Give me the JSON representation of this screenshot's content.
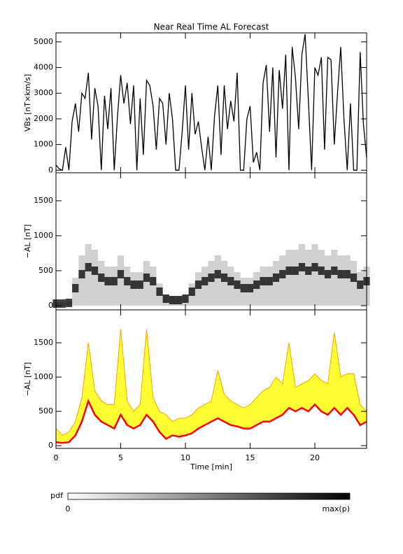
{
  "chart_data": [
    {
      "type": "line",
      "title": "Near Real Time AL Forecast",
      "y_label": "VBs [nT×km/s]",
      "color": "#000000",
      "x": [
        0,
        0.25,
        0.5,
        0.75,
        1,
        1.25,
        1.5,
        1.75,
        2,
        2.25,
        2.5,
        2.75,
        3,
        3.25,
        3.5,
        3.75,
        4,
        4.25,
        4.5,
        4.75,
        5,
        5.25,
        5.5,
        5.75,
        6,
        6.25,
        6.5,
        6.75,
        7,
        7.25,
        7.5,
        7.75,
        8,
        8.25,
        8.5,
        8.75,
        9,
        9.25,
        9.5,
        9.75,
        10,
        10.25,
        10.5,
        10.75,
        11,
        11.25,
        11.5,
        11.75,
        12,
        12.25,
        12.5,
        12.75,
        13,
        13.25,
        13.5,
        13.75,
        14,
        14.25,
        14.5,
        14.75,
        15,
        15.25,
        15.5,
        15.75,
        16,
        16.25,
        16.5,
        16.75,
        17,
        17.25,
        17.5,
        17.75,
        18,
        18.25,
        18.5,
        18.75,
        19,
        19.25,
        19.5,
        19.75,
        20,
        20.25,
        20.5,
        20.75,
        21,
        21.25,
        21.5,
        21.75,
        22,
        22.25,
        22.5,
        22.75,
        23,
        23.25,
        23.5,
        23.75,
        24
      ],
      "values": [
        200,
        50,
        0,
        900,
        0,
        1900,
        2600,
        1500,
        3000,
        2800,
        3800,
        1200,
        3200,
        2500,
        0,
        2900,
        1600,
        3200,
        0,
        2100,
        3700,
        2600,
        3400,
        1800,
        3300,
        0,
        2800,
        600,
        3500,
        3300,
        2500,
        800,
        2800,
        2600,
        1000,
        3000,
        2000,
        0,
        0,
        1500,
        3300,
        800,
        3000,
        1400,
        1900,
        900,
        0,
        1300,
        0,
        2100,
        3300,
        600,
        3300,
        1600,
        2700,
        1900,
        3800,
        0,
        0,
        2000,
        2500,
        300,
        700,
        0,
        3400,
        4100,
        1500,
        4000,
        500,
        3900,
        2400,
        4500,
        0,
        4800,
        3600,
        1600,
        4500,
        5300,
        2700,
        0,
        4000,
        3700,
        4400,
        800,
        4400,
        4300,
        1000,
        3000,
        4800,
        2000,
        0,
        2600,
        0,
        0,
        4600,
        1800,
        500
      ],
      "xlim": [
        0,
        24
      ],
      "xticks": [
        0,
        5,
        10,
        15,
        20
      ],
      "ylim": [
        -100,
        5350
      ],
      "yticks": [
        0,
        1000,
        2000,
        3000,
        4000,
        5000
      ]
    },
    {
      "type": "heatmap",
      "y_label": "−AL [nT]",
      "color": "#000000",
      "x": [
        0,
        0.5,
        1,
        1.5,
        2,
        2.5,
        3,
        3.5,
        4,
        4.5,
        5,
        5.5,
        6,
        6.5,
        7,
        7.5,
        8,
        8.5,
        9,
        9.5,
        10,
        10.5,
        11,
        11.5,
        12,
        12.5,
        13,
        13.5,
        14,
        14.5,
        15,
        15.5,
        16,
        16.5,
        17,
        17.5,
        18,
        18.5,
        19,
        19.5,
        20,
        20.5,
        21,
        21.5,
        22,
        22.5,
        23,
        23.5,
        24
      ],
      "values": [
        30,
        30,
        40,
        250,
        450,
        550,
        500,
        400,
        350,
        350,
        450,
        350,
        300,
        300,
        400,
        350,
        200,
        100,
        80,
        80,
        100,
        200,
        300,
        350,
        400,
        450,
        400,
        350,
        300,
        250,
        250,
        300,
        350,
        350,
        400,
        450,
        500,
        500,
        550,
        500,
        550,
        500,
        450,
        500,
        450,
        450,
        400,
        300,
        350
      ],
      "xlim": [
        0,
        24
      ],
      "xticks": [
        0,
        5,
        10,
        15,
        20
      ],
      "ylim": [
        -60,
        1900
      ],
      "yticks": [
        0,
        500,
        1000,
        1500
      ]
    },
    {
      "type": "band",
      "y_label": "−AL [nT]",
      "x_label": "Time [min]",
      "x": [
        0,
        0.5,
        1,
        1.5,
        2,
        2.5,
        3,
        3.5,
        4,
        4.5,
        5,
        5.5,
        6,
        6.5,
        7,
        7.5,
        8,
        8.5,
        9,
        9.5,
        10,
        10.5,
        11,
        11.5,
        12,
        12.5,
        13,
        13.5,
        14,
        14.5,
        15,
        15.5,
        16,
        16.5,
        17,
        17.5,
        18,
        18.5,
        19,
        19.5,
        20,
        20.5,
        21,
        21.5,
        22,
        22.5,
        23,
        23.5,
        24
      ],
      "series": [
        {
          "color": "#ff0000",
          "values": [
            50,
            40,
            50,
            150,
            350,
            650,
            450,
            350,
            300,
            250,
            450,
            300,
            250,
            300,
            450,
            350,
            200,
            100,
            150,
            130,
            150,
            180,
            250,
            300,
            350,
            400,
            350,
            300,
            280,
            250,
            250,
            300,
            350,
            350,
            400,
            450,
            550,
            500,
            550,
            500,
            600,
            500,
            450,
            550,
            450,
            550,
            450,
            300,
            350
          ]
        },
        {
          "color": "#ffff33",
          "values": [
            250,
            150,
            200,
            350,
            700,
            1500,
            800,
            650,
            600,
            600,
            1700,
            650,
            500,
            600,
            1700,
            700,
            500,
            450,
            350,
            400,
            400,
            450,
            550,
            600,
            650,
            1100,
            750,
            650,
            600,
            550,
            600,
            700,
            800,
            850,
            1000,
            900,
            1500,
            850,
            900,
            950,
            1050,
            950,
            900,
            1650,
            1000,
            1050,
            1050,
            600,
            500
          ]
        }
      ],
      "xlim": [
        0,
        24
      ],
      "xticks": [
        0,
        5,
        10,
        15,
        20
      ],
      "ylim": [
        -40,
        1980
      ],
      "yticks": [
        0,
        500,
        1000,
        1500
      ]
    }
  ],
  "colorbar": {
    "label": "pdf",
    "min_label": "0",
    "max_label": "max(p)"
  }
}
